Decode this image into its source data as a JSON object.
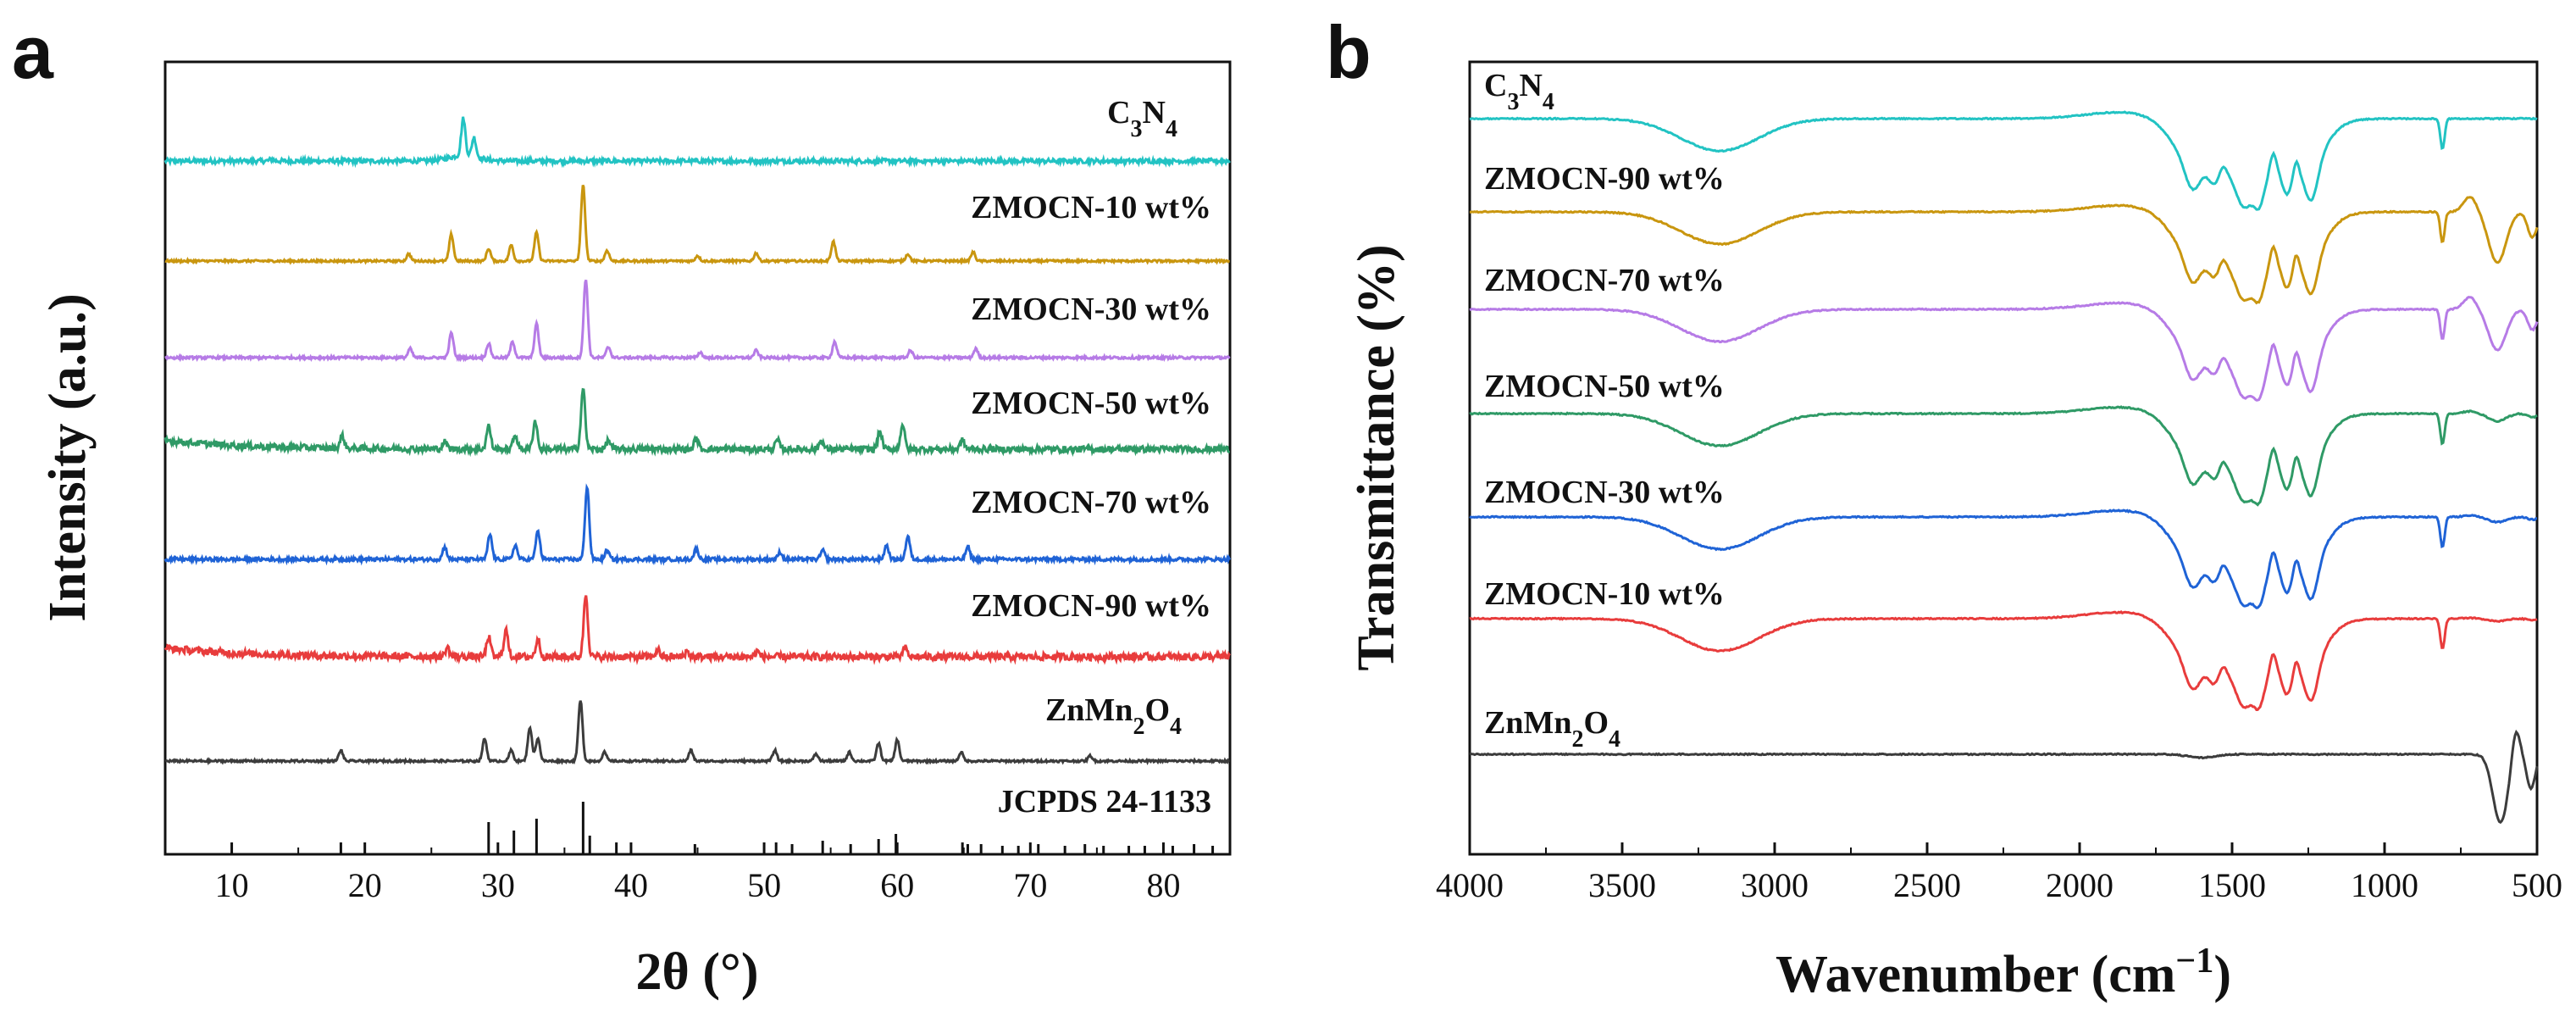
{
  "chart_data": [
    {
      "panel": "a",
      "type": "line",
      "title": "",
      "xlabel": "2θ (°)",
      "ylabel": "Intensity (a.u.)",
      "xlim": [
        5,
        85
      ],
      "xticks": [
        10,
        20,
        30,
        40,
        50,
        60,
        70,
        80
      ],
      "series": [
        {
          "name": "C3N4",
          "label_main": "C",
          "label_parts": [
            [
              "sub",
              "3"
            ],
            [
              "txt",
              "N"
            ],
            [
              "sub",
              "4"
            ]
          ],
          "color": "#22c3c3",
          "peaks": [
            [
              13.0,
              2
            ],
            [
              27.4,
              42
            ],
            [
              28.2,
              22
            ]
          ],
          "noise": 2.5
        },
        {
          "name": "ZMOCN-10 wt%",
          "label_main": "ZMOCN-10 wt%",
          "label_parts": [],
          "color": "#c9960f",
          "peaks": [
            [
              23.3,
              8
            ],
            [
              26.5,
              30
            ],
            [
              29.3,
              14
            ],
            [
              31.0,
              18
            ],
            [
              32.9,
              32
            ],
            [
              36.4,
              85
            ],
            [
              38.2,
              12
            ],
            [
              45.0,
              6
            ],
            [
              49.4,
              9
            ],
            [
              55.2,
              22
            ],
            [
              60.8,
              8
            ],
            [
              65.7,
              10
            ]
          ],
          "noise": 1.2
        },
        {
          "name": "ZMOCN-30 wt%",
          "label_main": "ZMOCN-30 wt%",
          "label_parts": [],
          "color": "#b67be6",
          "peaks": [
            [
              23.4,
              10
            ],
            [
              26.5,
              28
            ],
            [
              29.3,
              16
            ],
            [
              31.1,
              18
            ],
            [
              32.9,
              38
            ],
            [
              36.6,
              88
            ],
            [
              38.3,
              12
            ],
            [
              45.2,
              6
            ],
            [
              49.4,
              8
            ],
            [
              55.3,
              18
            ],
            [
              61.0,
              8
            ],
            [
              65.9,
              10
            ]
          ],
          "noise": 1.4
        },
        {
          "name": "ZMOCN-50 wt%",
          "label_main": "ZMOCN-50 wt%",
          "label_parts": [],
          "color": "#2f9a66",
          "peaks": [
            [
              18.3,
              14
            ],
            [
              26.0,
              8
            ],
            [
              29.3,
              26
            ],
            [
              31.3,
              16
            ],
            [
              32.8,
              32
            ],
            [
              36.4,
              68
            ],
            [
              38.3,
              10
            ],
            [
              44.9,
              12
            ],
            [
              51.0,
              10
            ],
            [
              54.3,
              10
            ],
            [
              58.7,
              20
            ],
            [
              60.4,
              28
            ],
            [
              64.9,
              10
            ]
          ],
          "noise": 3.5
        },
        {
          "name": "ZMOCN-70 wt%",
          "label_main": "ZMOCN-70 wt%",
          "label_parts": [],
          "color": "#1f63d6",
          "peaks": [
            [
              26.0,
              14
            ],
            [
              29.4,
              28
            ],
            [
              31.3,
              16
            ],
            [
              33.0,
              32
            ],
            [
              36.7,
              82
            ],
            [
              38.2,
              10
            ],
            [
              44.9,
              12
            ],
            [
              51.2,
              8
            ],
            [
              54.4,
              10
            ],
            [
              59.2,
              16
            ],
            [
              60.8,
              26
            ],
            [
              65.3,
              14
            ]
          ],
          "noise": 2.0
        },
        {
          "name": "ZMOCN-90 wt%",
          "label_main": "ZMOCN-90 wt%",
          "label_parts": [],
          "color": "#e83c3c",
          "peaks": [
            [
              26.2,
              10
            ],
            [
              29.3,
              22
            ],
            [
              30.6,
              30
            ],
            [
              33.0,
              20
            ],
            [
              36.6,
              70
            ],
            [
              42.0,
              8
            ],
            [
              44.2,
              6
            ],
            [
              49.5,
              6
            ],
            [
              60.6,
              10
            ]
          ],
          "noise": 4.0
        },
        {
          "name": "ZnMn2O4",
          "label_main": "ZnMn",
          "label_parts": [
            [
              "sub",
              "2"
            ],
            [
              "txt",
              "O"
            ],
            [
              "sub",
              "4"
            ]
          ],
          "color": "#3c3c3c",
          "peaks": [
            [
              18.2,
              12
            ],
            [
              29.0,
              25
            ],
            [
              31.0,
              12
            ],
            [
              32.4,
              38
            ],
            [
              33.0,
              26
            ],
            [
              36.2,
              68
            ],
            [
              38.0,
              10
            ],
            [
              44.5,
              12
            ],
            [
              50.8,
              12
            ],
            [
              53.9,
              8
            ],
            [
              56.4,
              10
            ],
            [
              58.6,
              20
            ],
            [
              60.0,
              24
            ],
            [
              64.8,
              10
            ],
            [
              74.5,
              6
            ]
          ],
          "noise": 1.2
        }
      ],
      "reference": {
        "name": "JCPDS 24-1133",
        "lines": [
          [
            18.2,
            14
          ],
          [
            29.3,
            38
          ],
          [
            31.2,
            28
          ],
          [
            32.9,
            42
          ],
          [
            36.4,
            62
          ],
          [
            36.9,
            22
          ],
          [
            38.9,
            14
          ],
          [
            44.8,
            12
          ],
          [
            50.9,
            14
          ],
          [
            52.1,
            12
          ],
          [
            54.4,
            16
          ],
          [
            56.5,
            12
          ],
          [
            58.6,
            18
          ],
          [
            59.9,
            24
          ],
          [
            64.9,
            14
          ],
          [
            65.3,
            12
          ],
          [
            66.3,
            12
          ],
          [
            67.9,
            10
          ],
          [
            69.1,
            10
          ],
          [
            70.6,
            12
          ],
          [
            72.6,
            10
          ],
          [
            74.1,
            12
          ],
          [
            75.5,
            10
          ],
          [
            77.4,
            10
          ],
          [
            78.6,
            10
          ],
          [
            80.7,
            10
          ],
          [
            82.3,
            12
          ],
          [
            83.7,
            10
          ]
        ]
      }
    },
    {
      "panel": "b",
      "type": "line",
      "title": "",
      "xlabel": "Wavenumber (cm⁻¹)",
      "xlabel_main": "Wavenumber (cm",
      "xlabel_sup": "−1",
      "xlabel_tail": ")",
      "ylabel": "Transmittance (%)",
      "xlim": [
        4000,
        500
      ],
      "xticks": [
        4000,
        3500,
        3000,
        2500,
        2000,
        1500,
        1000,
        500
      ],
      "series": [
        {
          "name": "C3N4",
          "label_main": "C",
          "label_parts": [
            [
              "sub",
              "3"
            ],
            [
              "txt",
              "N"
            ],
            [
              "sub",
              "4"
            ]
          ],
          "color": "#22c3c3",
          "type": "cn",
          "mo": 0
        },
        {
          "name": "ZMOCN-90 wt%",
          "label_main": "ZMOCN-90 wt%",
          "label_parts": [],
          "color": "#c9960f",
          "type": "cn",
          "mo": 1.0
        },
        {
          "name": "ZMOCN-70 wt%",
          "label_main": "ZMOCN-70 wt%",
          "label_parts": [],
          "color": "#b67be6",
          "type": "cn",
          "mo": 0.8
        },
        {
          "name": "ZMOCN-50 wt%",
          "label_main": "ZMOCN-50 wt%",
          "label_parts": [],
          "color": "#2f9a66",
          "type": "cn",
          "mo": 0.15
        },
        {
          "name": "ZMOCN-30 wt%",
          "label_main": "ZMOCN-30 wt%",
          "label_parts": [],
          "color": "#1f63d6",
          "type": "cn",
          "mo": 0.1
        },
        {
          "name": "ZMOCN-10 wt%",
          "label_main": "ZMOCN-10 wt%",
          "label_parts": [],
          "color": "#e83c3c",
          "type": "cn",
          "mo": 0.05
        },
        {
          "name": "ZnMn2O4",
          "label_main": "ZnMn",
          "label_parts": [
            [
              "sub",
              "2"
            ],
            [
              "txt",
              "O"
            ],
            [
              "sub",
              "4"
            ]
          ],
          "color": "#3c3c3c",
          "type": "zmo",
          "mo": 1.0
        }
      ]
    }
  ],
  "panels": {
    "a": "a",
    "b": "b"
  }
}
